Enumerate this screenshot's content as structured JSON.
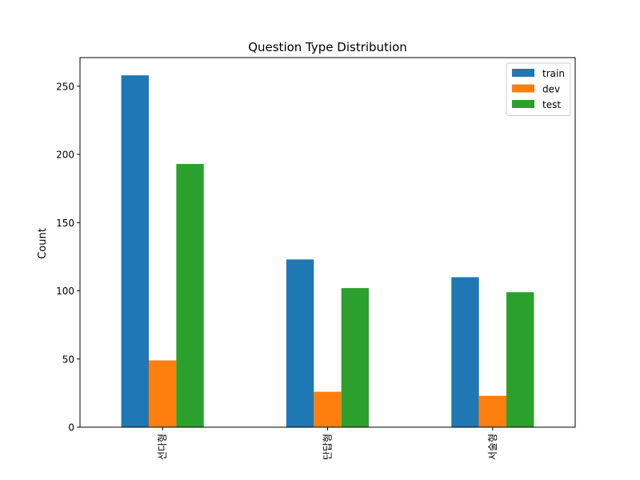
{
  "chart_data": {
    "type": "bar",
    "title": "Question Type Distribution",
    "xlabel": "",
    "ylabel": "Count",
    "categories": [
      "선다형",
      "단답형",
      "서술형"
    ],
    "series": [
      {
        "name": "train",
        "values": [
          258,
          123,
          110
        ],
        "color": "#1f77b4"
      },
      {
        "name": "dev",
        "values": [
          49,
          26,
          23
        ],
        "color": "#ff7f0e"
      },
      {
        "name": "test",
        "values": [
          193,
          102,
          99
        ],
        "color": "#2ca02c"
      }
    ],
    "ylim": [
      0,
      271
    ],
    "yticks": [
      0,
      50,
      100,
      150,
      200,
      250
    ],
    "grid": false,
    "legend_position": "top-right"
  }
}
